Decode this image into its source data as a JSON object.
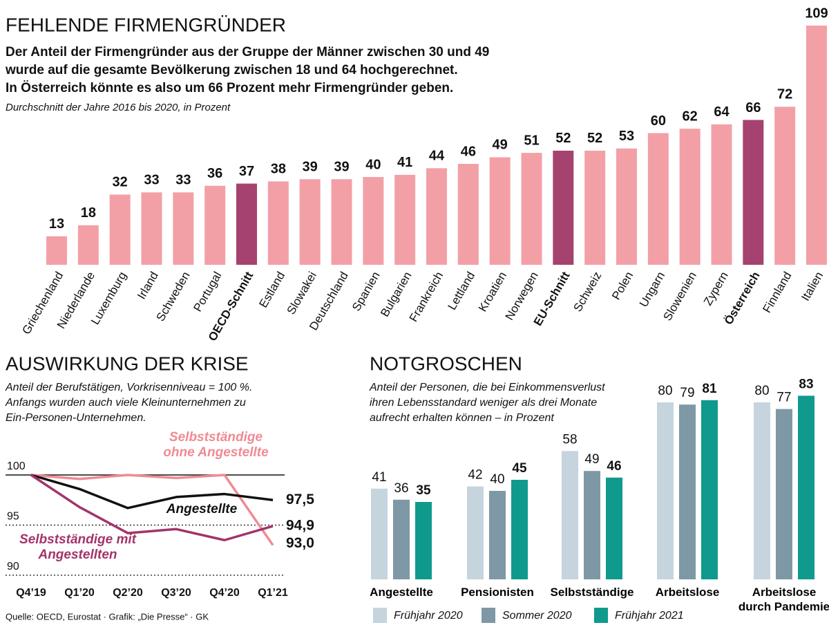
{
  "chart_data": [
    {
      "type": "bar",
      "title": "FEHLENDE FIRMENGRÜNDER",
      "subtitle": [
        "Der Anteil der Firmengründer aus der Gruppe der Männer zwischen 30 und 49",
        "wurde auf die gesamte Bevölkerung zwischen 18 und 64 hochgerechnet.",
        "In Österreich könnte es also um 66 Prozent mehr Firmengründer geben."
      ],
      "note": "Durchschnitt der Jahre 2016 bis 2020, in Prozent",
      "categories": [
        "Griechenland",
        "Niederlande",
        "Luxemburg",
        "Irland",
        "Schweden",
        "Portugal",
        "OECD-Schnitt",
        "Estland",
        "Slowakei",
        "Deutschland",
        "Spanien",
        "Bulgarien",
        "Frankreich",
        "Lettland",
        "Kroatien",
        "Norwegen",
        "EU-Schnitt",
        "Schweiz",
        "Polen",
        "Ungarn",
        "Slowenien",
        "Zypern",
        "Österreich",
        "Finnland",
        "Italien"
      ],
      "values": [
        13,
        18,
        32,
        33,
        33,
        36,
        37,
        38,
        39,
        39,
        40,
        41,
        44,
        46,
        49,
        51,
        52,
        52,
        53,
        60,
        62,
        64,
        66,
        72,
        109
      ],
      "color": "#f2a0a6",
      "colors": [
        "#f2a0a6",
        "#f2a0a6",
        "#f2a0a6",
        "#f2a0a6",
        "#f2a0a6",
        "#f2a0a6",
        "#a6426f",
        "#f2a0a6",
        "#f2a0a6",
        "#f2a0a6",
        "#f2a0a6",
        "#f2a0a6",
        "#f2a0a6",
        "#f2a0a6",
        "#f2a0a6",
        "#f2a0a6",
        "#a6426f",
        "#f2a0a6",
        "#f2a0a6",
        "#f2a0a6",
        "#f2a0a6",
        "#f2a0a6",
        "#a6426f",
        "#f2a0a6",
        "#f2a0a6"
      ]
    },
    {
      "type": "line",
      "title": "AUSWIRKUNG DER KRISE",
      "subtitle": [
        "Anteil der Berufstätigen, Vorkrisenniveau = 100 %.",
        "Anfangs wurden auch viele Kleinunternehmen zu",
        "Ein-Personen-Unternehmen."
      ],
      "categories": [
        "Q4’19",
        "Q1’20",
        "Q2’20",
        "Q3’20",
        "Q4’20",
        "Q1’21"
      ],
      "ylim": [
        90,
        100
      ],
      "yticks": [
        90,
        95,
        100
      ],
      "series": [
        {
          "name": "Selbstständige ohne Angestellte",
          "color": "#f08a94",
          "values": [
            100,
            99.6,
            100,
            99.7,
            100,
            93.0
          ],
          "value_labels": [
            null,
            null,
            null,
            null,
            null,
            "93,0"
          ]
        },
        {
          "name": "Angestellte",
          "color": "#111111",
          "values": [
            100,
            98.6,
            96.7,
            97.8,
            98.1,
            97.5
          ],
          "value_labels": [
            null,
            null,
            null,
            null,
            null,
            "97,5"
          ]
        },
        {
          "name": "Selbstständige mit Angestellten",
          "color": "#a3336b",
          "values": [
            100,
            96.8,
            94.2,
            94.6,
            93.5,
            94.9
          ],
          "value_labels": [
            null,
            null,
            null,
            null,
            null,
            "94,9"
          ]
        }
      ]
    },
    {
      "type": "grouped-bar",
      "title": "NOTGROSCHEN",
      "subtitle": [
        "Anteil der Personen, die bei Einkommensverlust",
        "ihren Lebensstandard weniger als drei Monate",
        "aufrecht erhalten können – in Prozent"
      ],
      "categories": [
        "Angestellte",
        "Pensionisten",
        "Selbstständige",
        "Arbeitslose",
        "Arbeitslose durch Pandemie"
      ],
      "series": [
        {
          "name": "Frühjahr 2020",
          "color": "#c6d4dd",
          "values": [
            41,
            42,
            58,
            80,
            80
          ]
        },
        {
          "name": "Sommer 2020",
          "color": "#7e98a5",
          "values": [
            36,
            40,
            49,
            79,
            77
          ]
        },
        {
          "name": "Frühjahr 2021",
          "color": "#0f9a8d",
          "values": [
            35,
            45,
            46,
            81,
            83
          ]
        }
      ]
    }
  ],
  "source": "Quelle: OECD, Eurostat · Grafik: „Die Presse“ · GK"
}
